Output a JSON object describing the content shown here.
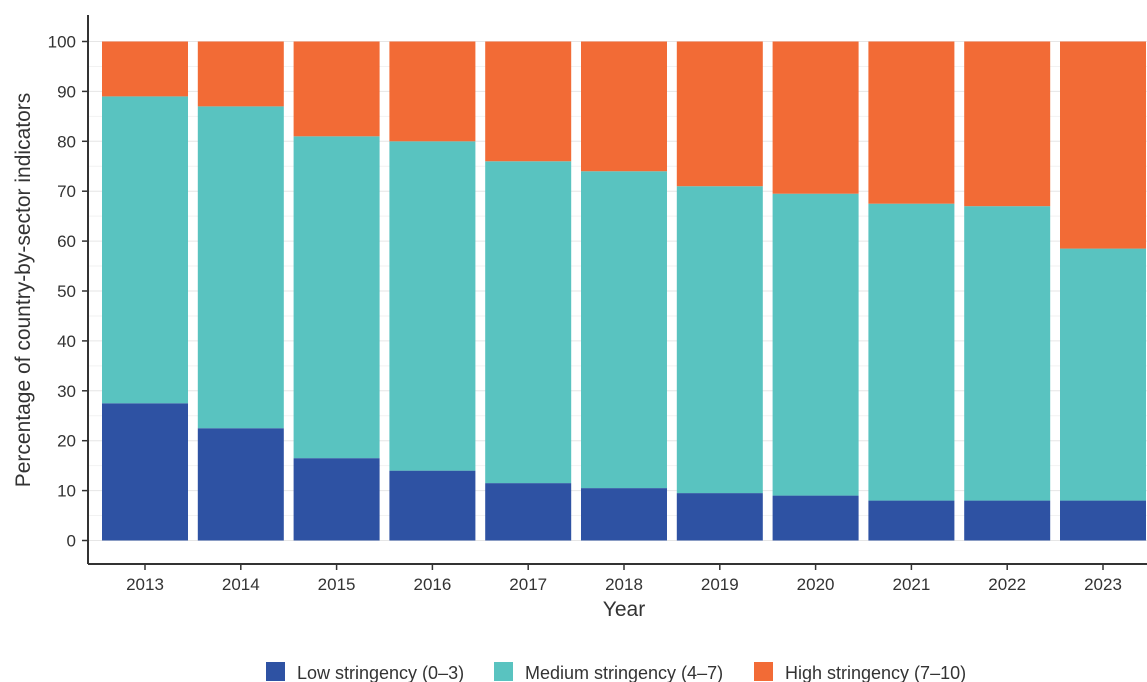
{
  "chart_data": {
    "type": "bar",
    "stacked": true,
    "categories": [
      "2013",
      "2014",
      "2015",
      "2016",
      "2017",
      "2018",
      "2019",
      "2020",
      "2021",
      "2022",
      "2023"
    ],
    "series": [
      {
        "name": "Low stringency (0–3)",
        "color": "#2e52a3",
        "values": [
          27.5,
          22.5,
          16.5,
          14,
          11.5,
          10.5,
          9.5,
          9,
          8,
          8,
          8
        ]
      },
      {
        "name": "Medium stringency (4–7)",
        "color": "#59c3c0",
        "values": [
          61.5,
          64.5,
          64.5,
          66,
          64.5,
          63.5,
          61.5,
          60.5,
          59.5,
          59,
          50.5
        ]
      },
      {
        "name": "High stringency (7–10)",
        "color": "#f26b36",
        "values": [
          11,
          13,
          19,
          20,
          24,
          26,
          29,
          30.5,
          32.5,
          33,
          41.5
        ]
      }
    ],
    "xlabel": "Year",
    "ylabel": "Percentage of country-by-sector indicators",
    "ylim": [
      0,
      100
    ],
    "yticks": [
      0,
      10,
      20,
      30,
      40,
      50,
      60,
      70,
      80,
      90,
      100
    ],
    "grid": true,
    "legend_position": "bottom"
  }
}
